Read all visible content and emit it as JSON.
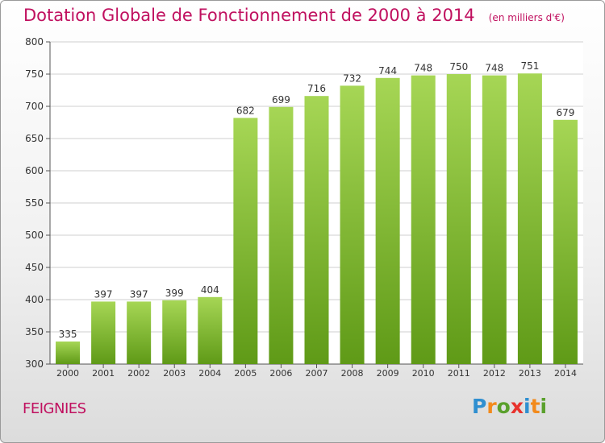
{
  "title": "Dotation Globale de Fonctionnement de 2000 à 2014",
  "unit_note": "(en milliers d'€)",
  "city": "FEIGNIES",
  "logo": {
    "letters": [
      "P",
      "r",
      "o",
      "x",
      "i",
      "t",
      "i"
    ],
    "colors": [
      "#2f8fd0",
      "#f28a1c",
      "#5aa02c",
      "#e8322d",
      "#2f8fd0",
      "#f28a1c",
      "#5aa02c"
    ]
  },
  "colors": {
    "bar_top": "#a6d655",
    "bar_bottom": "#5f9a17",
    "title": "#c0105f"
  },
  "chart_data": {
    "type": "bar",
    "title": "Dotation Globale de Fonctionnement de 2000 à 2014",
    "subtitle": "(en milliers d'€)",
    "categories": [
      "2000",
      "2001",
      "2002",
      "2003",
      "2004",
      "2005",
      "2006",
      "2007",
      "2008",
      "2009",
      "2010",
      "2011",
      "2012",
      "2013",
      "2014"
    ],
    "values": [
      335,
      397,
      397,
      399,
      404,
      682,
      699,
      716,
      732,
      744,
      748,
      750,
      748,
      751,
      679
    ],
    "ylim": [
      300,
      800
    ],
    "yticks": [
      300,
      350,
      400,
      450,
      500,
      550,
      600,
      650,
      700,
      750,
      800
    ],
    "grid": true
  }
}
